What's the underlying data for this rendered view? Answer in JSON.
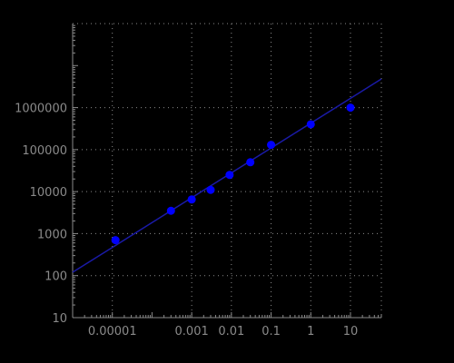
{
  "chart_data": {
    "type": "scatter",
    "title": "",
    "xlabel": "",
    "ylabel": "",
    "xscale": "log",
    "yscale": "log",
    "xlim": [
      1e-06,
      60
    ],
    "ylim": [
      10,
      100000000
    ],
    "grid": true,
    "grid_style": "dotted",
    "x_ticks": [
      {
        "value": 1e-05,
        "label": "0.00001"
      },
      {
        "value": 0.001,
        "label": "0.001"
      },
      {
        "value": 0.01,
        "label": "0.01"
      },
      {
        "value": 0.1,
        "label": "0.1"
      },
      {
        "value": 1,
        "label": "1"
      },
      {
        "value": 10,
        "label": "10"
      }
    ],
    "y_ticks": [
      {
        "value": 10,
        "label": "10"
      },
      {
        "value": 100,
        "label": "100"
      },
      {
        "value": 1000,
        "label": "1000"
      },
      {
        "value": 10000,
        "label": "10000"
      },
      {
        "value": 100000,
        "label": "100000"
      },
      {
        "value": 1000000,
        "label": "1000000"
      }
    ],
    "series": [
      {
        "marker_color": "#0000ff",
        "points": [
          {
            "x": 1.2e-05,
            "y": 700
          },
          {
            "x": 0.0003,
            "y": 3500
          },
          {
            "x": 0.001,
            "y": 6500
          },
          {
            "x": 0.003,
            "y": 11000
          },
          {
            "x": 0.009,
            "y": 25000
          },
          {
            "x": 0.03,
            "y": 50000
          },
          {
            "x": 0.1,
            "y": 130000
          },
          {
            "x": 1,
            "y": 400000
          },
          {
            "x": 10,
            "y": 1000000
          }
        ]
      }
    ],
    "fit_line": {
      "color": "#1a1aa6",
      "points": [
        {
          "x": 1e-06,
          "y": 120
        },
        {
          "x": 60,
          "y": 4800000
        }
      ]
    },
    "colors": {
      "background": "#000000",
      "axis": "#8a8a8a",
      "grid": "#8a8a8a",
      "text": "#8a8a8a"
    }
  }
}
